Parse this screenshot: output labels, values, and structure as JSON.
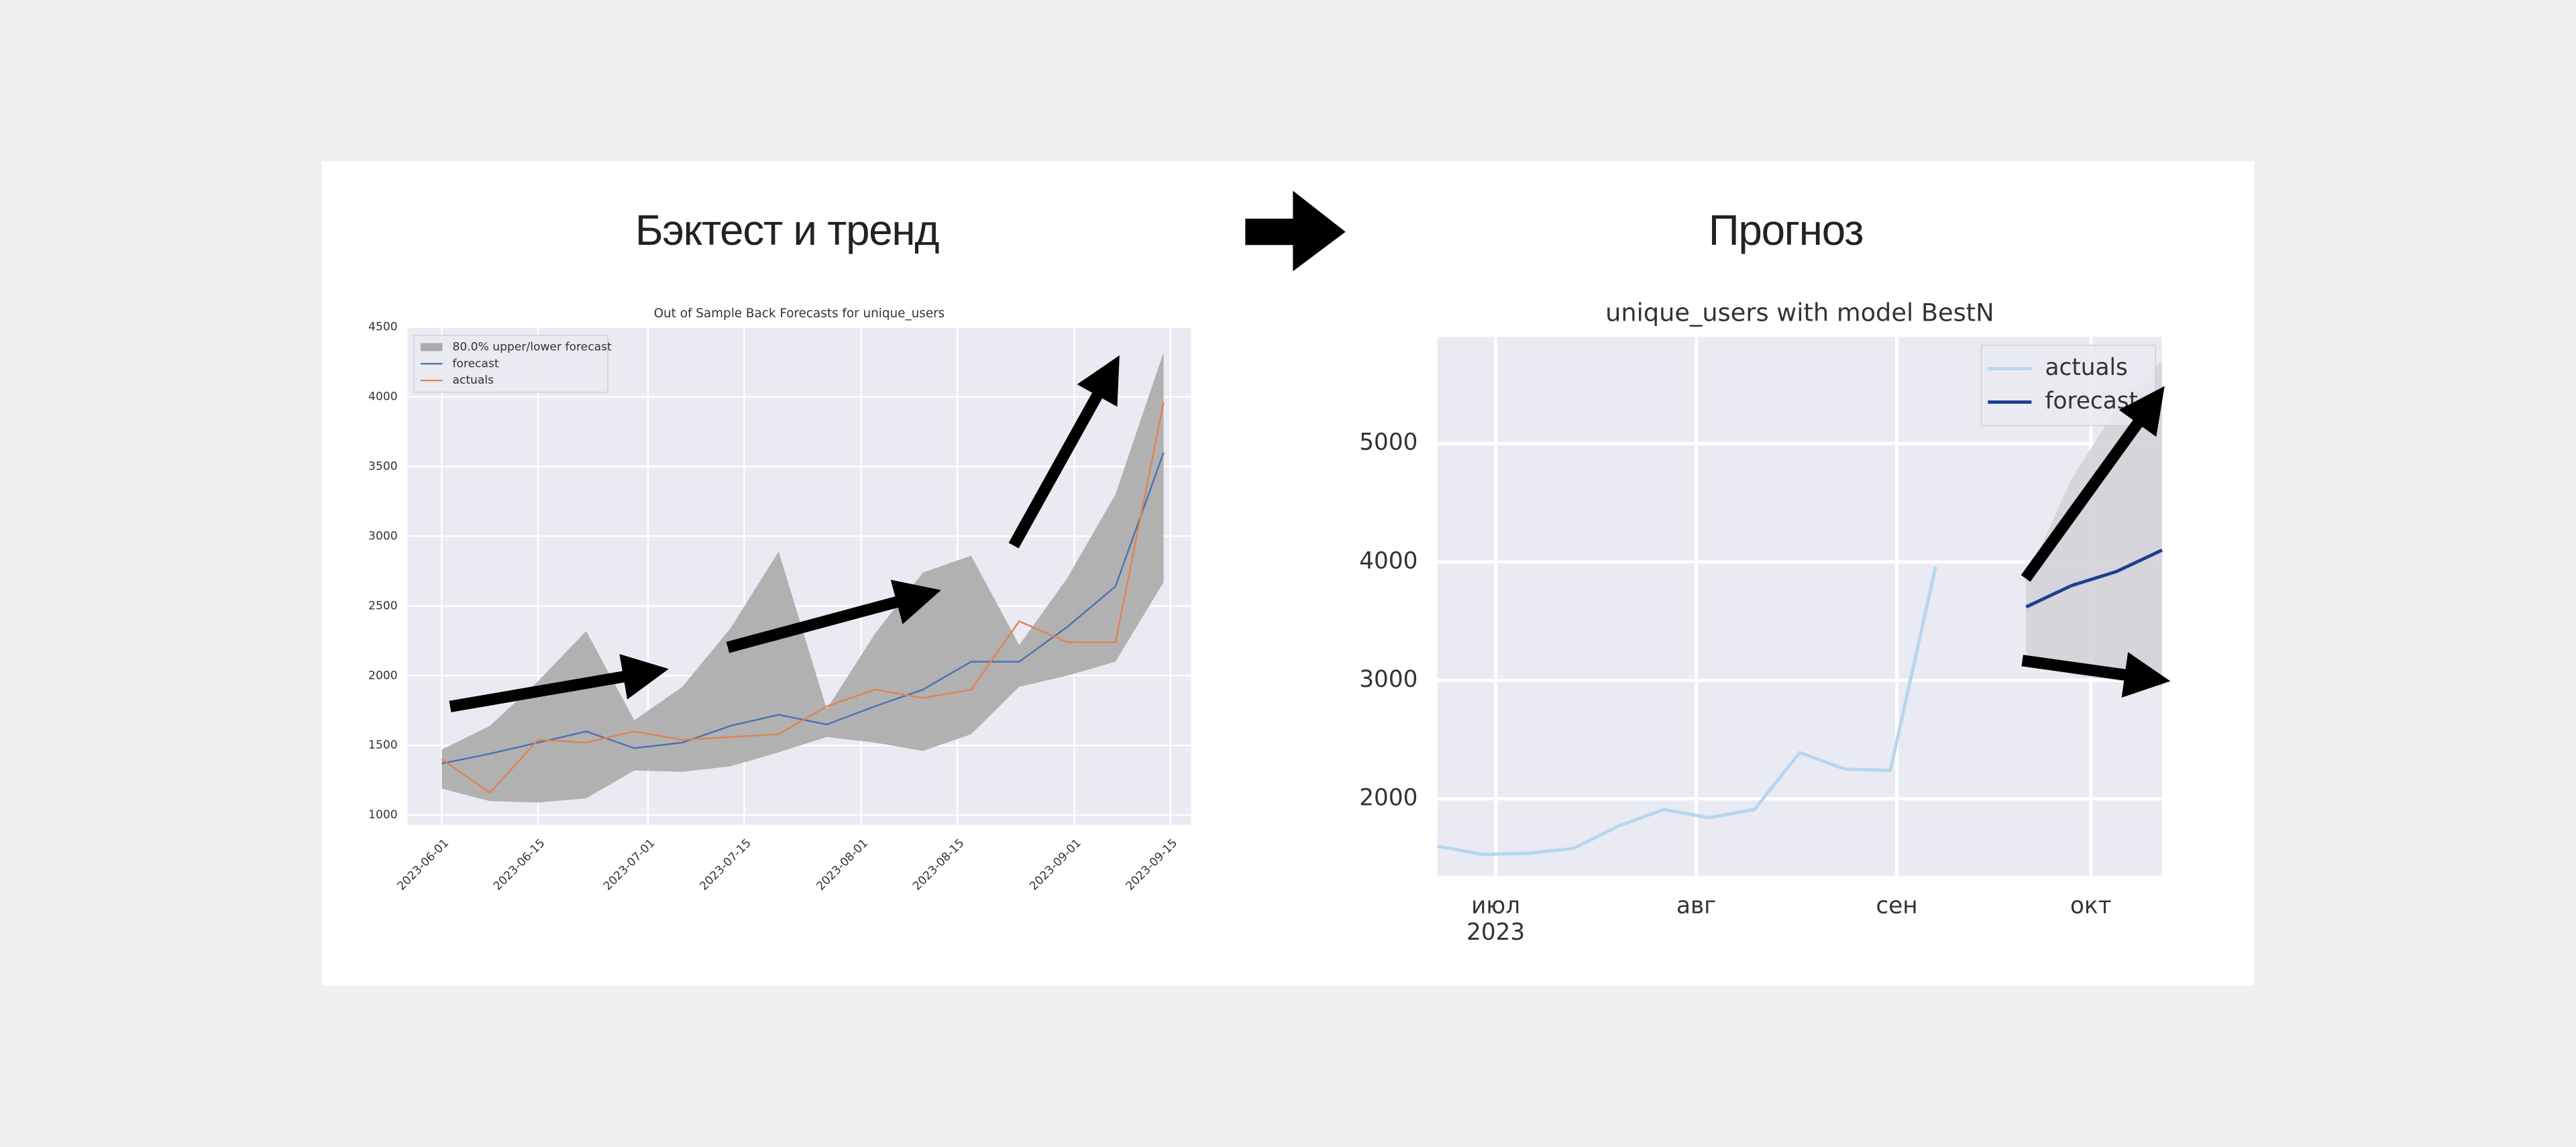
{
  "headings": [
    "Бэктест и тренд",
    "Прогноз"
  ],
  "chart_data": [
    {
      "type": "line",
      "title": "Out of Sample Back Forecasts for unique_users",
      "x": [
        "2023-06-01",
        "2023-06-08",
        "2023-06-15",
        "2023-06-22",
        "2023-06-29",
        "2023-07-06",
        "2023-07-13",
        "2023-07-20",
        "2023-07-27",
        "2023-08-03",
        "2023-08-10",
        "2023-08-17",
        "2023-08-24",
        "2023-08-31",
        "2023-09-07",
        "2023-09-14"
      ],
      "band": {
        "name": "80.0% upper/lower forecast",
        "color": "#ababab",
        "upper": [
          1470,
          1640,
          1960,
          2320,
          1680,
          1920,
          2340,
          2890,
          1760,
          2300,
          2740,
          2860,
          2220,
          2700,
          3300,
          4320
        ],
        "lower": [
          1190,
          1100,
          1090,
          1120,
          1320,
          1310,
          1350,
          1450,
          1560,
          1520,
          1460,
          1580,
          1920,
          2000,
          2100,
          2670
        ]
      },
      "series": [
        {
          "name": "forecast",
          "color": "#4c72b0",
          "values": [
            1370,
            1440,
            1520,
            1600,
            1480,
            1520,
            1640,
            1720,
            1650,
            1780,
            1900,
            2100,
            2100,
            2350,
            2640,
            3600
          ]
        },
        {
          "name": "actuals",
          "color": "#dd8452",
          "values": [
            1400,
            1160,
            1540,
            1520,
            1600,
            1540,
            1560,
            1580,
            1780,
            1900,
            1840,
            1900,
            2390,
            2240,
            2240,
            3960
          ]
        }
      ],
      "xlim": [
        "2023-05-27",
        "2023-09-18"
      ],
      "xticks": [
        "2023-06-01",
        "2023-06-15",
        "2023-07-01",
        "2023-07-15",
        "2023-08-01",
        "2023-08-15",
        "2023-09-01",
        "2023-09-15"
      ],
      "ylim": [
        930,
        4500
      ],
      "yticks": [
        1000,
        1500,
        2000,
        2500,
        3000,
        3500,
        4000,
        4500
      ],
      "grid": true,
      "legend": "upper left"
    },
    {
      "type": "line",
      "title": "unique_users with model BestN",
      "band": {
        "color": "#d3d3d8",
        "x": [
          "2023-09-21",
          "2023-09-28",
          "2023-10-05",
          "2023-10-12"
        ],
        "upper": [
          3850,
          4700,
          5300,
          5700
        ],
        "lower": [
          3150,
          3050,
          3000,
          2950
        ]
      },
      "series": [
        {
          "name": "actuals",
          "color": "#b6d6ee",
          "x": [
            "2023-06-22",
            "2023-06-29",
            "2023-07-06",
            "2023-07-13",
            "2023-07-20",
            "2023-07-27",
            "2023-08-03",
            "2023-08-10",
            "2023-08-17",
            "2023-08-24",
            "2023-08-31",
            "2023-09-07"
          ],
          "values": [
            1600,
            1530,
            1540,
            1580,
            1770,
            1910,
            1840,
            1910,
            2390,
            2250,
            2240,
            3960
          ]
        },
        {
          "name": "forecast",
          "color": "#1f3f8f",
          "x": [
            "2023-09-21",
            "2023-09-28",
            "2023-10-05",
            "2023-10-12"
          ],
          "values": [
            3620,
            3800,
            3920,
            4100
          ]
        }
      ],
      "xlim": [
        "2023-06-22",
        "2023-10-12"
      ],
      "xticks": [
        {
          "value": "2023-07-01",
          "label": "июл"
        },
        {
          "value": "2023-08-01",
          "label": "авг"
        },
        {
          "value": "2023-09-01",
          "label": "сен"
        },
        {
          "value": "2023-10-01",
          "label": "окт"
        }
      ],
      "xlabel_year": "2023",
      "ylim": [
        1350,
        5900
      ],
      "yticks": [
        2000,
        3000,
        4000,
        5000
      ],
      "grid": true,
      "legend": "upper right"
    }
  ]
}
